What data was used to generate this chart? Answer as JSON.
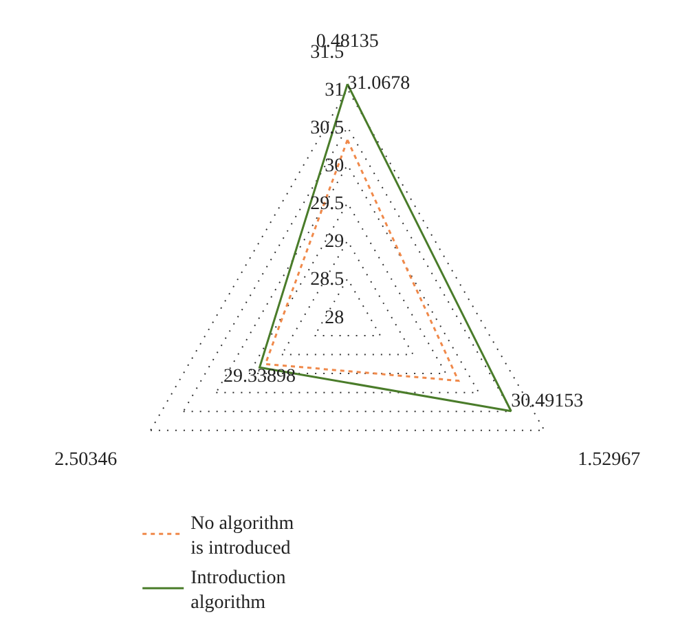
{
  "chart_data": {
    "type": "radar",
    "categories": [
      "0.48135",
      "1.52967",
      "2.50346"
    ],
    "series": [
      {
        "name": "No algorithm is introduced",
        "color": "#f0894a",
        "line_style": "dotted",
        "values": [
          30.33,
          29.69,
          29.25
        ]
      },
      {
        "name": "Introduction algorithm",
        "color": "#4a7c2a",
        "line_style": "solid",
        "values": [
          31.0678,
          30.49153,
          29.33898
        ],
        "value_labels": [
          "31.0678",
          "30.49153",
          "29.33898"
        ]
      }
    ],
    "ylim": [
      28,
      31.5
    ],
    "yticks": [
      28,
      28.5,
      29,
      29.5,
      30,
      30.5,
      31,
      31.5
    ],
    "grid": true,
    "legend": "bottom left",
    "marker": "none"
  }
}
